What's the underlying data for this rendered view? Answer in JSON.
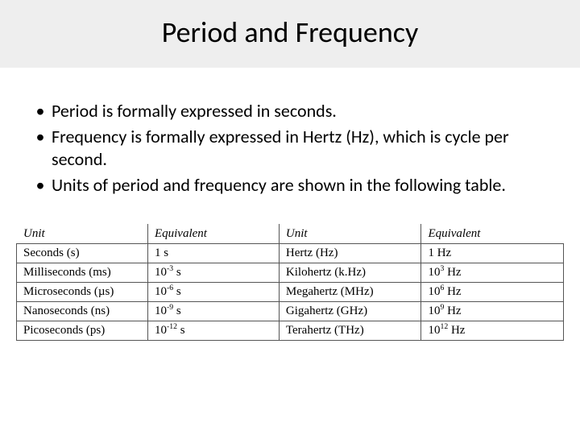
{
  "title": "Period and Frequency",
  "bullets": [
    "Period is formally expressed in seconds.",
    "Frequency is formally expressed in Hertz (Hz), which is cycle per second.",
    "Units of period and frequency are shown in the following table."
  ],
  "table": {
    "columns": [
      "Unit",
      "Equivalent",
      "Unit",
      "Equivalent"
    ],
    "column_widths_pct": [
      24,
      24,
      26,
      26
    ],
    "rows": [
      {
        "unit_l": "Seconds (s)",
        "eq_l_base": "1",
        "eq_l_exp": "",
        "eq_l_suffix": " s",
        "unit_r": "Hertz (Hz)",
        "eq_r_base": "1",
        "eq_r_exp": "",
        "eq_r_suffix": " Hz"
      },
      {
        "unit_l": "Milliseconds (ms)",
        "eq_l_base": "10",
        "eq_l_exp": "-3",
        "eq_l_suffix": " s",
        "unit_r": "Kilohertz (k.Hz)",
        "eq_r_base": "10",
        "eq_r_exp": "3",
        "eq_r_suffix": " Hz"
      },
      {
        "unit_l": "Microseconds (µs)",
        "eq_l_base": "10",
        "eq_l_exp": "-6",
        "eq_l_suffix": " s",
        "unit_r": "Megahertz (MHz)",
        "eq_r_base": "10",
        "eq_r_exp": "6",
        "eq_r_suffix": " Hz"
      },
      {
        "unit_l": "Nanoseconds (ns)",
        "eq_l_base": "10",
        "eq_l_exp": "-9",
        "eq_l_suffix": " s",
        "unit_r": "Gigahertz (GHz)",
        "eq_r_base": "10",
        "eq_r_exp": "9",
        "eq_r_suffix": " Hz"
      },
      {
        "unit_l": "Picoseconds (ps)",
        "eq_l_base": "10",
        "eq_l_exp": "-12",
        "eq_l_suffix": " s",
        "unit_r": "Terahertz (THz)",
        "eq_r_base": "10",
        "eq_r_exp": "12",
        "eq_r_suffix": " Hz"
      }
    ],
    "border_color": "#555555",
    "header_font_style": "italic",
    "body_font_family": "Times New Roman",
    "font_size_pt": 11
  },
  "colors": {
    "title_band_bg": "#eeeeee",
    "page_bg": "#ffffff",
    "text": "#000000"
  },
  "fonts": {
    "title_family": "Calibri",
    "title_size_pt": 28,
    "body_family": "Calibri",
    "body_size_pt": 17
  }
}
